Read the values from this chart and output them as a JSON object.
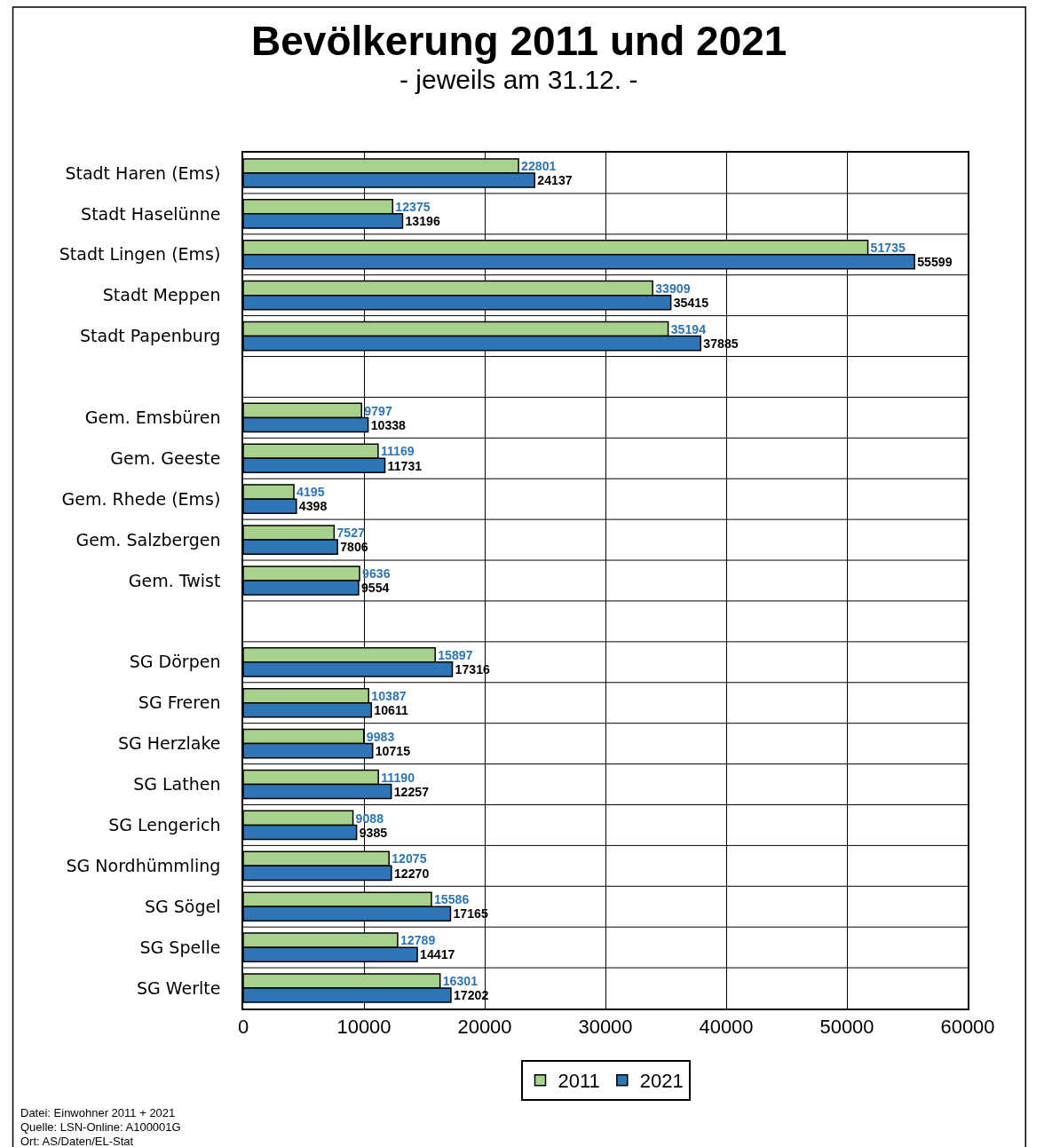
{
  "chart_data": {
    "type": "bar",
    "orientation": "horizontal",
    "title": "Bevölkerung 2011 und 2021",
    "subtitle": "- jeweils am 31.12. -",
    "categories": [
      "Stadt Haren (Ems)",
      "Stadt Haselünne",
      "Stadt Lingen (Ems)",
      "Stadt Meppen",
      "Stadt Papenburg",
      null,
      "Gem. Emsbüren",
      "Gem. Geeste",
      "Gem. Rhede (Ems)",
      "Gem. Salzbergen",
      "Gem. Twist",
      null,
      "SG Dörpen",
      "SG Freren",
      "SG Herzlake",
      "SG Lathen",
      "SG Lengerich",
      "SG Nordhümmling",
      "SG Sögel",
      "SG Spelle",
      "SG Werlte"
    ],
    "series": [
      {
        "name": "2011",
        "color": "#a9d18e",
        "values": [
          22801,
          12375,
          51735,
          33909,
          35194,
          null,
          9797,
          11169,
          4195,
          7527,
          9636,
          null,
          15897,
          10387,
          9983,
          11190,
          9088,
          12075,
          15586,
          12789,
          16301
        ]
      },
      {
        "name": "2021",
        "color": "#2e75b6",
        "values": [
          24137,
          13196,
          55599,
          35415,
          37885,
          null,
          10338,
          11731,
          4398,
          7806,
          9554,
          null,
          17316,
          10611,
          10715,
          12257,
          9385,
          12270,
          17165,
          14417,
          17202
        ]
      }
    ],
    "xlim": [
      0,
      60000
    ],
    "xticks": [
      0,
      10000,
      20000,
      30000,
      40000,
      50000,
      60000
    ],
    "grid": true,
    "legend": "bottom",
    "data_labels": true,
    "annotations": [
      "Datei: Einwohner 2011 + 2021",
      "Quelle: LSN-Online: A100001G",
      "Ort: AS/Daten/EL-Stat"
    ]
  }
}
